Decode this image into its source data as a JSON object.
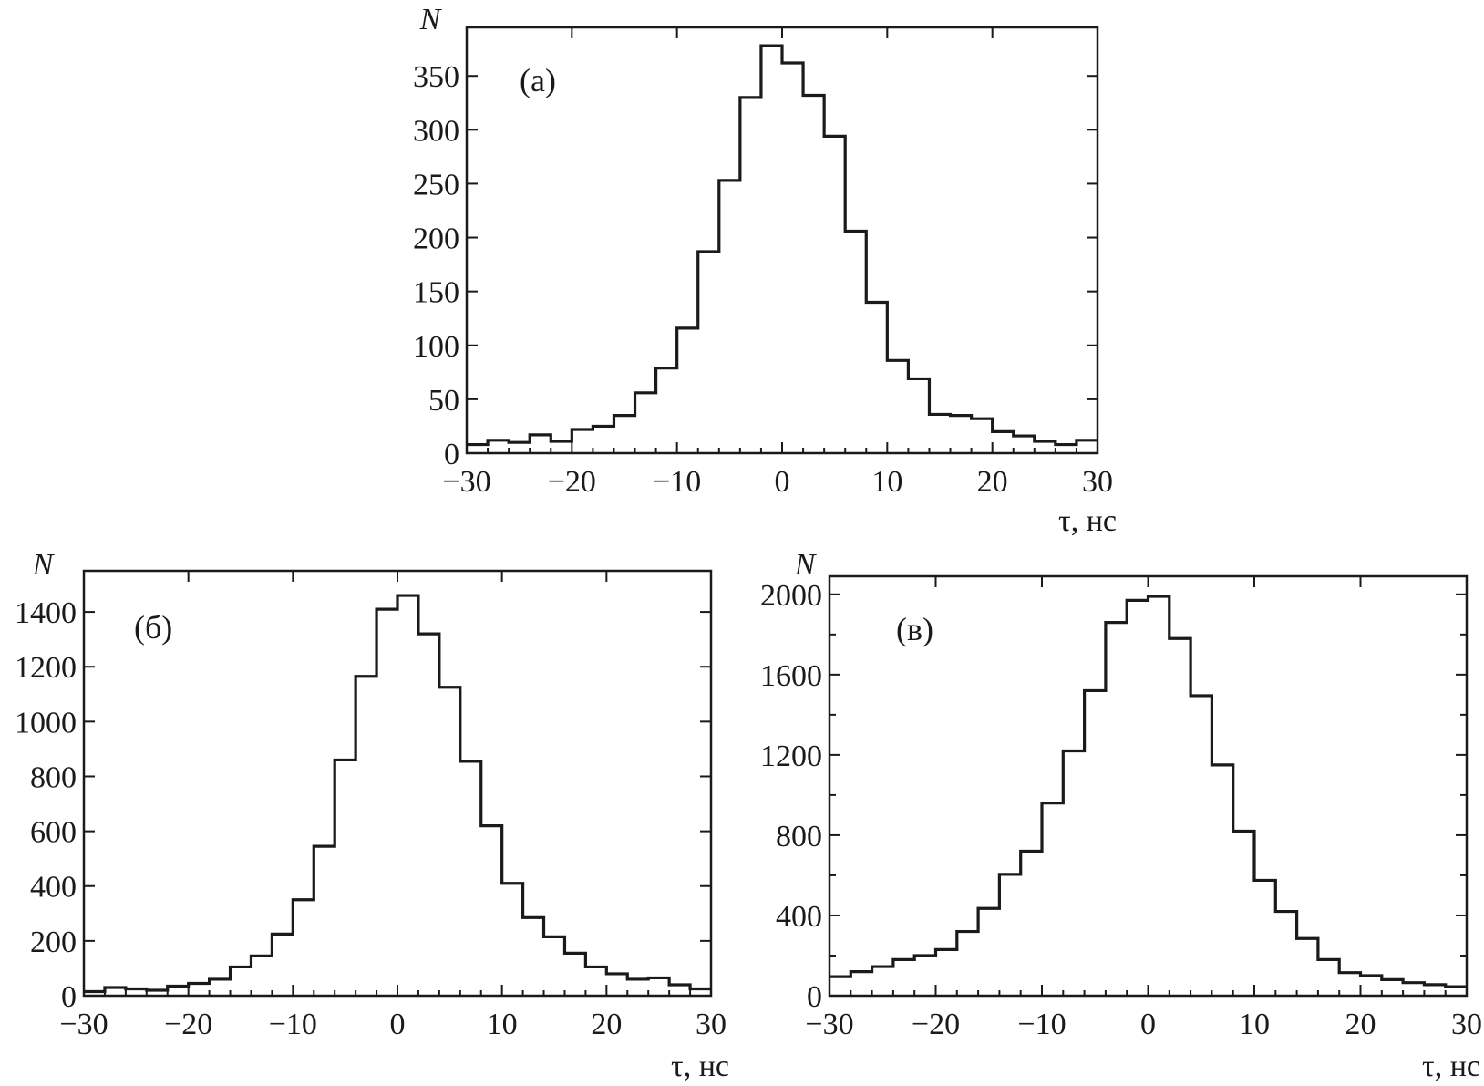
{
  "chart_data": [
    {
      "type": "histogram",
      "panel_label": "(а)",
      "xlabel": "τ, нс",
      "ylabel": "N",
      "xlim": [
        -30,
        30
      ],
      "ylim": [
        0,
        395
      ],
      "xticks": [
        -30,
        -20,
        -10,
        0,
        10,
        20,
        30
      ],
      "xtick_labels": [
        "−30",
        "−20",
        "−10",
        "0",
        "10",
        "20",
        "30"
      ],
      "yticks": [
        0,
        50,
        100,
        150,
        200,
        250,
        300,
        350
      ],
      "ytick_labels": [
        "0",
        "50",
        "100",
        "150",
        "200",
        "250",
        "300",
        "350"
      ],
      "bin_edges": [
        -30,
        -28,
        -26,
        -24,
        -22,
        -20,
        -18,
        -16,
        -14,
        -12,
        -10,
        -8,
        -6,
        -4,
        -2,
        0,
        2,
        4,
        6,
        8,
        10,
        12,
        14,
        16,
        18,
        20,
        22,
        24,
        26,
        28,
        30
      ],
      "values": [
        8,
        12,
        10,
        17,
        11,
        22,
        25,
        35,
        56,
        79,
        116,
        187,
        253,
        330,
        378,
        362,
        332,
        294,
        206,
        140,
        86,
        69,
        36,
        35,
        32,
        20,
        16,
        11,
        8,
        12
      ]
    },
    {
      "type": "histogram",
      "panel_label": "(б)",
      "xlabel": "τ, нс",
      "ylabel": "N",
      "xlim": [
        -30,
        30
      ],
      "ylim": [
        0,
        1550
      ],
      "xticks": [
        -30,
        -20,
        -10,
        0,
        10,
        20,
        30
      ],
      "xtick_labels": [
        "−30",
        "−20",
        "−10",
        "0",
        "10",
        "20",
        "30"
      ],
      "yticks": [
        0,
        200,
        400,
        600,
        800,
        1000,
        1200,
        1400
      ],
      "ytick_labels": [
        "0",
        "200",
        "400",
        "600",
        "800",
        "1000",
        "1200",
        "1400"
      ],
      "bin_edges": [
        -30,
        -28,
        -26,
        -24,
        -22,
        -20,
        -18,
        -16,
        -14,
        -12,
        -10,
        -8,
        -6,
        -4,
        -2,
        0,
        2,
        4,
        6,
        8,
        10,
        12,
        14,
        16,
        18,
        20,
        22,
        24,
        26,
        28,
        30
      ],
      "values": [
        15,
        30,
        25,
        20,
        35,
        45,
        60,
        105,
        145,
        225,
        350,
        545,
        860,
        1165,
        1410,
        1460,
        1320,
        1125,
        855,
        620,
        410,
        285,
        215,
        155,
        105,
        80,
        60,
        65,
        40,
        25
      ]
    },
    {
      "type": "histogram",
      "panel_label": "(в)",
      "xlabel": "τ, нс",
      "ylabel": "N",
      "xlim": [
        -30,
        30
      ],
      "ylim": [
        0,
        2090
      ],
      "xticks": [
        -30,
        -20,
        -10,
        0,
        10,
        20,
        30
      ],
      "xtick_labels": [
        "−30",
        "−20",
        "−10",
        "0",
        "10",
        "20",
        "30"
      ],
      "yticks": [
        0,
        400,
        800,
        1200,
        1600,
        2000
      ],
      "ytick_labels": [
        "0",
        "400",
        "800",
        "1200",
        "1600",
        "2000"
      ],
      "yminor": 200,
      "bin_edges": [
        -30,
        -28,
        -26,
        -24,
        -22,
        -20,
        -18,
        -16,
        -14,
        -12,
        -10,
        -8,
        -6,
        -4,
        -2,
        0,
        2,
        4,
        6,
        8,
        10,
        12,
        14,
        16,
        18,
        20,
        22,
        24,
        26,
        28,
        30
      ],
      "values": [
        95,
        120,
        145,
        180,
        200,
        230,
        320,
        435,
        605,
        720,
        960,
        1220,
        1520,
        1860,
        1970,
        1990,
        1780,
        1495,
        1150,
        820,
        575,
        420,
        285,
        180,
        115,
        100,
        80,
        65,
        55,
        45
      ]
    }
  ]
}
